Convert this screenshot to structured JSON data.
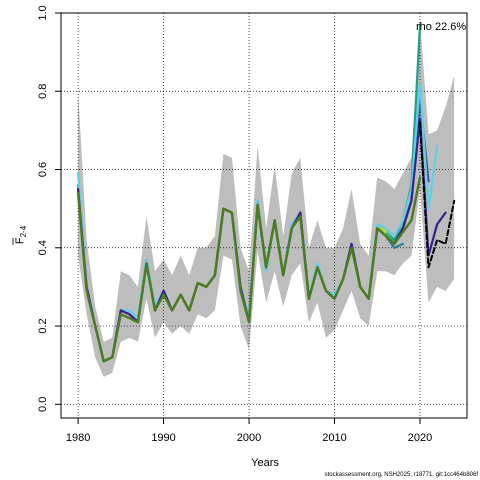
{
  "chart_data": {
    "type": "line",
    "xlabel": "Years",
    "ylabel_main": "F",
    "ylabel_sub": "2-4",
    "xlim": [
      1978,
      2025.5
    ],
    "ylim": [
      -0.035,
      1.0
    ],
    "xticks": [
      1980,
      1990,
      2000,
      2010,
      2020
    ],
    "yticks": [
      0.0,
      0.2,
      0.4,
      0.6,
      0.8,
      1.0
    ],
    "ytick_labels": [
      "0.0",
      "0.2",
      "0.4",
      "0.6",
      "0.8",
      "1.0"
    ],
    "grid": true,
    "grid_style": "dotted",
    "annotation": "rho 22.6%",
    "footer": "stockassessment.org, NSH2025, r18771, git:1cc464b806f",
    "band": {
      "color": "#bdbdbd",
      "x": [
        1980,
        1981,
        1982,
        1983,
        1984,
        1985,
        1986,
        1987,
        1988,
        1989,
        1990,
        1991,
        1992,
        1993,
        1994,
        1995,
        1996,
        1997,
        1998,
        1999,
        2000,
        2001,
        2002,
        2003,
        2004,
        2005,
        2006,
        2007,
        2008,
        2009,
        2010,
        2011,
        2012,
        2013,
        2014,
        2015,
        2016,
        2017,
        2018,
        2019,
        2020,
        2021,
        2022,
        2023,
        2024
      ],
      "upper": [
        0.8,
        0.42,
        0.25,
        0.16,
        0.17,
        0.34,
        0.33,
        0.3,
        0.48,
        0.34,
        0.37,
        0.33,
        0.38,
        0.33,
        0.4,
        0.4,
        0.43,
        0.64,
        0.63,
        0.4,
        0.34,
        0.66,
        0.45,
        0.61,
        0.43,
        0.59,
        0.63,
        0.4,
        0.47,
        0.4,
        0.4,
        0.45,
        0.55,
        0.41,
        0.38,
        0.58,
        0.57,
        0.55,
        0.59,
        0.63,
        0.98,
        0.69,
        0.7,
        0.76,
        0.84
      ],
      "lower": [
        0.38,
        0.23,
        0.12,
        0.07,
        0.08,
        0.16,
        0.17,
        0.16,
        0.27,
        0.17,
        0.21,
        0.18,
        0.2,
        0.18,
        0.23,
        0.22,
        0.24,
        0.38,
        0.37,
        0.2,
        0.14,
        0.39,
        0.26,
        0.34,
        0.25,
        0.33,
        0.36,
        0.21,
        0.26,
        0.17,
        0.19,
        0.24,
        0.29,
        0.22,
        0.2,
        0.34,
        0.34,
        0.33,
        0.36,
        0.38,
        0.55,
        0.26,
        0.3,
        0.29,
        0.32
      ]
    },
    "series": [
      {
        "color": "#1fa187",
        "width": 2.2,
        "dash": "",
        "x": [
          1980,
          1981,
          1982,
          1983,
          1984,
          1985,
          1986,
          1987,
          1988,
          1989,
          1990,
          1991,
          1992,
          1993,
          1994,
          1995,
          1996,
          1997,
          1998,
          1999,
          2000,
          2001,
          2002,
          2003,
          2004,
          2005,
          2006,
          2007,
          2008,
          2009,
          2010,
          2011,
          2012,
          2013,
          2014,
          2015,
          2016,
          2017,
          2018,
          2019,
          2020
        ],
        "values": [
          0.56,
          0.3,
          0.2,
          0.11,
          0.12,
          0.24,
          0.23,
          0.21,
          0.37,
          0.24,
          0.29,
          0.24,
          0.28,
          0.24,
          0.31,
          0.3,
          0.33,
          0.5,
          0.49,
          0.3,
          0.22,
          0.52,
          0.35,
          0.47,
          0.33,
          0.45,
          0.49,
          0.27,
          0.35,
          0.29,
          0.27,
          0.32,
          0.41,
          0.3,
          0.27,
          0.46,
          0.44,
          0.42,
          0.47,
          0.56,
          0.97
        ]
      },
      {
        "color": "#35b779",
        "width": 2.2,
        "dash": "",
        "x": [
          2016,
          2017,
          2018,
          2019
        ],
        "values": [
          0.44,
          0.41,
          0.45,
          0.52
        ]
      },
      {
        "color": "#26828e",
        "width": 2.2,
        "dash": "",
        "x": [
          2016,
          2017,
          2018
        ],
        "values": [
          0.43,
          0.4,
          0.41
        ]
      },
      {
        "color": "#6ece58",
        "width": 2.2,
        "dash": "",
        "x": [
          2015,
          2016,
          2017
        ],
        "values": [
          0.45,
          0.43,
          0.41
        ]
      },
      {
        "color": "#b5de2b",
        "width": 2.2,
        "dash": "",
        "x": [
          2015,
          2016
        ],
        "values": [
          0.46,
          0.44
        ]
      },
      {
        "color": "#3e4a89",
        "width": 2.2,
        "dash": "",
        "x": [
          1980,
          1981,
          1982,
          1983,
          1984,
          1985,
          1986,
          1987,
          1988,
          1989,
          1990,
          1991,
          1992,
          1993,
          1994,
          1995,
          1996,
          1997,
          1998,
          1999,
          2000,
          2001,
          2002,
          2003,
          2004,
          2005,
          2006,
          2007,
          2008,
          2009,
          2010,
          2011,
          2012,
          2013,
          2014,
          2015,
          2016,
          2017,
          2018,
          2019,
          2020,
          2021
        ],
        "values": [
          0.55,
          0.3,
          0.2,
          0.11,
          0.12,
          0.24,
          0.23,
          0.21,
          0.36,
          0.24,
          0.29,
          0.24,
          0.28,
          0.24,
          0.31,
          0.3,
          0.33,
          0.5,
          0.49,
          0.3,
          0.21,
          0.51,
          0.35,
          0.47,
          0.33,
          0.45,
          0.49,
          0.27,
          0.35,
          0.29,
          0.27,
          0.32,
          0.41,
          0.3,
          0.27,
          0.45,
          0.43,
          0.41,
          0.45,
          0.52,
          0.78,
          0.57
        ]
      },
      {
        "color": "#5ed0e8",
        "width": 2.2,
        "dash": "",
        "x": [
          1980,
          1981,
          1982,
          1983,
          1984,
          1985,
          1986,
          1987,
          1988,
          1989,
          1990,
          1991,
          1992,
          1993,
          1994,
          1995,
          1996,
          1997,
          1998,
          1999,
          2000,
          2001,
          2002,
          2003,
          2004,
          2005,
          2006,
          2007,
          2008,
          2009,
          2010,
          2011,
          2012,
          2013,
          2014,
          2015,
          2016,
          2017,
          2018,
          2019,
          2020,
          2021,
          2022
        ],
        "values": [
          0.59,
          0.3,
          0.2,
          0.11,
          0.12,
          0.24,
          0.24,
          0.22,
          0.37,
          0.25,
          0.29,
          0.24,
          0.28,
          0.24,
          0.31,
          0.3,
          0.33,
          0.5,
          0.49,
          0.3,
          0.22,
          0.52,
          0.34,
          0.47,
          0.33,
          0.46,
          0.49,
          0.27,
          0.36,
          0.29,
          0.28,
          0.32,
          0.41,
          0.3,
          0.27,
          0.46,
          0.45,
          0.43,
          0.47,
          0.55,
          0.82,
          0.5,
          0.66
        ]
      },
      {
        "color": "#3b1f8a",
        "width": 2.2,
        "dash": "",
        "x": [
          1980,
          1981,
          1982,
          1983,
          1984,
          1985,
          1986,
          1987,
          1988,
          1989,
          1990,
          1991,
          1992,
          1993,
          1994,
          1995,
          1996,
          1997,
          1998,
          1999,
          2000,
          2001,
          2002,
          2003,
          2004,
          2005,
          2006,
          2007,
          2008,
          2009,
          2010,
          2011,
          2012,
          2013,
          2014,
          2015,
          2016,
          2017,
          2018,
          2019,
          2020,
          2021,
          2022,
          2023
        ],
        "values": [
          0.55,
          0.3,
          0.2,
          0.11,
          0.12,
          0.24,
          0.23,
          0.21,
          0.36,
          0.24,
          0.29,
          0.24,
          0.28,
          0.24,
          0.31,
          0.3,
          0.33,
          0.5,
          0.49,
          0.3,
          0.21,
          0.51,
          0.35,
          0.47,
          0.33,
          0.45,
          0.49,
          0.27,
          0.35,
          0.29,
          0.27,
          0.32,
          0.41,
          0.3,
          0.27,
          0.45,
          0.43,
          0.41,
          0.45,
          0.52,
          0.73,
          0.38,
          0.46,
          0.49
        ]
      },
      {
        "color": "#4b7d1c",
        "width": 2.4,
        "dash": "",
        "x": [
          1980,
          1981,
          1982,
          1983,
          1984,
          1985,
          1986,
          1987,
          1988,
          1989,
          1990,
          1991,
          1992,
          1993,
          1994,
          1995,
          1996,
          1997,
          1998,
          1999,
          2000,
          2001,
          2002,
          2003,
          2004,
          2005,
          2006,
          2007,
          2008,
          2009,
          2010,
          2011,
          2012,
          2013,
          2014,
          2015,
          2016,
          2017,
          2018,
          2019,
          2020
        ],
        "values": [
          0.54,
          0.29,
          0.2,
          0.11,
          0.12,
          0.23,
          0.22,
          0.21,
          0.36,
          0.24,
          0.28,
          0.24,
          0.28,
          0.24,
          0.31,
          0.3,
          0.33,
          0.5,
          0.49,
          0.29,
          0.21,
          0.51,
          0.35,
          0.47,
          0.33,
          0.45,
          0.48,
          0.27,
          0.35,
          0.29,
          0.27,
          0.32,
          0.4,
          0.3,
          0.27,
          0.45,
          0.43,
          0.41,
          0.44,
          0.47,
          0.58
        ]
      },
      {
        "color": "#000000",
        "width": 2.0,
        "dash": "5,3",
        "x": [
          2020,
          2021,
          2022,
          2023,
          2024
        ],
        "values": [
          0.72,
          0.35,
          0.42,
          0.41,
          0.52
        ]
      }
    ]
  }
}
